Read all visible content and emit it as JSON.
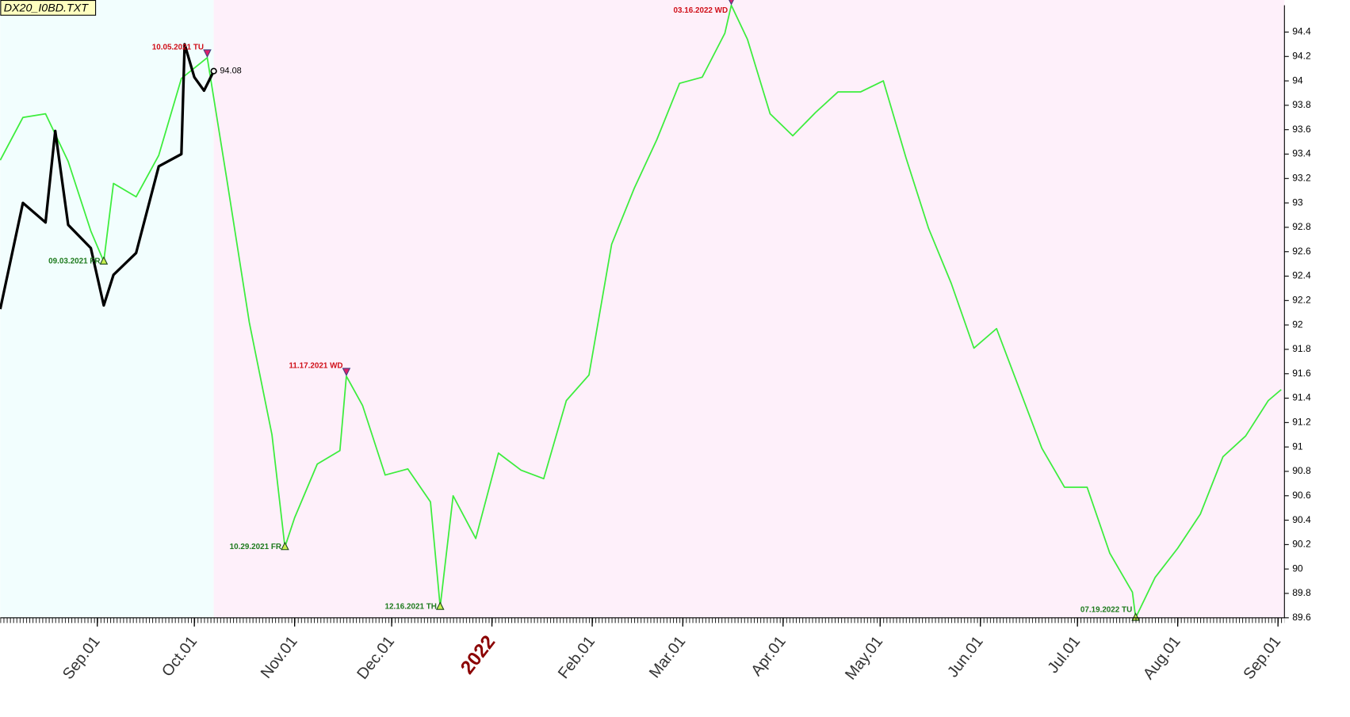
{
  "chart_data": {
    "type": "line",
    "title": "DX20_I0BD.TXT",
    "xlim": [
      "2021-08-02",
      "2022-09-03"
    ],
    "ylim": [
      89.6,
      94.62
    ],
    "yticks": [
      89.6,
      89.8,
      90,
      90.2,
      90.4,
      90.6,
      90.8,
      91,
      91.2,
      91.4,
      91.6,
      91.8,
      92,
      92.2,
      92.4,
      92.6,
      92.8,
      93,
      93.2,
      93.4,
      93.6,
      93.8,
      94,
      94.2,
      94.4
    ],
    "xticks": [
      {
        "value": "2021-09-01",
        "label": "Sep.01"
      },
      {
        "value": "2021-10-01",
        "label": "Oct.01"
      },
      {
        "value": "2021-11-01",
        "label": "Nov.01"
      },
      {
        "value": "2021-12-01",
        "label": "Dec.01"
      },
      {
        "value": "2022-01-01",
        "label": "2022"
      },
      {
        "value": "2022-02-01",
        "label": "Feb.01"
      },
      {
        "value": "2022-03-01",
        "label": "Mar.01"
      },
      {
        "value": "2022-04-01",
        "label": "Apr.01"
      },
      {
        "value": "2022-05-01",
        "label": "May.01"
      },
      {
        "value": "2022-06-01",
        "label": "Jun.01"
      },
      {
        "value": "2022-07-01",
        "label": "Jul.01"
      },
      {
        "value": "2022-08-01",
        "label": "Aug.01"
      },
      {
        "value": "2022-09-01",
        "label": "Sep.01"
      }
    ],
    "regions": [
      {
        "from": "2021-08-02",
        "to": "2021-10-07",
        "color": "#f2fefe"
      },
      {
        "from": "2021-10-07",
        "to": "2022-09-03",
        "color": "#fef0fa"
      }
    ],
    "series": [
      {
        "color": "#3ded3d",
        "width": 1.6,
        "x": [
          "2021-08-02",
          "2021-08-09",
          "2021-08-16",
          "2021-08-23",
          "2021-08-30",
          "2021-09-03",
          "2021-09-06",
          "2021-09-13",
          "2021-09-20",
          "2021-09-27",
          "2021-10-05",
          "2021-10-11",
          "2021-10-18",
          "2021-10-25",
          "2021-10-29",
          "2021-11-01",
          "2021-11-08",
          "2021-11-15",
          "2021-11-17",
          "2021-11-22",
          "2021-11-29",
          "2021-12-06",
          "2021-12-13",
          "2021-12-16",
          "2021-12-20",
          "2021-12-27",
          "2022-01-03",
          "2022-01-10",
          "2022-01-17",
          "2022-01-24",
          "2022-01-31",
          "2022-02-07",
          "2022-02-14",
          "2022-02-21",
          "2022-02-28",
          "2022-03-07",
          "2022-03-14",
          "2022-03-16",
          "2022-03-21",
          "2022-03-28",
          "2022-04-04",
          "2022-04-11",
          "2022-04-18",
          "2022-04-25",
          "2022-05-02",
          "2022-05-09",
          "2022-05-16",
          "2022-05-23",
          "2022-05-30",
          "2022-06-06",
          "2022-06-13",
          "2022-06-20",
          "2022-06-27",
          "2022-07-04",
          "2022-07-11",
          "2022-07-18",
          "2022-07-19",
          "2022-07-25",
          "2022-08-01",
          "2022-08-08",
          "2022-08-15",
          "2022-08-22",
          "2022-08-29",
          "2022-09-02"
        ],
        "values": [
          93.35,
          93.7,
          93.73,
          93.34,
          92.77,
          92.52,
          93.16,
          93.05,
          93.39,
          94.02,
          94.19,
          93.2,
          92.02,
          91.1,
          90.18,
          90.42,
          90.86,
          90.97,
          91.58,
          91.34,
          90.77,
          90.82,
          90.55,
          89.69,
          90.6,
          90.25,
          90.95,
          90.81,
          90.74,
          91.38,
          91.59,
          92.66,
          93.12,
          93.52,
          93.98,
          94.03,
          94.39,
          94.62,
          94.34,
          93.73,
          93.55,
          93.74,
          93.91,
          93.91,
          94.0,
          93.37,
          92.79,
          92.34,
          91.81,
          91.97,
          91.48,
          90.99,
          90.67,
          90.67,
          90.13,
          89.81,
          89.6,
          89.93,
          90.17,
          90.45,
          90.92,
          91.09,
          91.38,
          91.47
        ]
      },
      {
        "color": "#000000",
        "width": 3,
        "x": [
          "2021-08-02",
          "2021-08-09",
          "2021-08-16",
          "2021-08-19",
          "2021-08-23",
          "2021-08-30",
          "2021-09-03",
          "2021-09-06",
          "2021-09-13",
          "2021-09-20",
          "2021-09-27",
          "2021-09-28",
          "2021-10-01",
          "2021-10-04",
          "2021-10-07"
        ],
        "values": [
          92.13,
          93.0,
          92.84,
          93.59,
          92.82,
          92.63,
          92.16,
          92.41,
          92.59,
          93.3,
          93.4,
          94.3,
          94.03,
          93.92,
          94.08
        ]
      }
    ],
    "annotations": [
      {
        "x": "2021-09-03",
        "y": 92.52,
        "label": "09.03.2021 FR",
        "color": "#1e7b1e",
        "marker": "up"
      },
      {
        "x": "2021-10-05",
        "y": 94.19,
        "label": "10.05.2021 TU",
        "color": "#d0101a",
        "marker": "down"
      },
      {
        "x": "2021-10-29",
        "y": 90.18,
        "label": "10.29.2021 FR",
        "color": "#1e7b1e",
        "marker": "up"
      },
      {
        "x": "2021-11-17",
        "y": 91.58,
        "label": "11.17.2021 WD",
        "color": "#d0101a",
        "marker": "down"
      },
      {
        "x": "2021-12-16",
        "y": 89.69,
        "label": "12.16.2021 TH",
        "color": "#1e7b1e",
        "marker": "up"
      },
      {
        "x": "2022-03-16",
        "y": 94.62,
        "label": "03.16.2022 WD",
        "color": "#d0101a",
        "marker": "down"
      },
      {
        "x": "2022-07-19",
        "y": 89.6,
        "label": "07.19.2022 TU",
        "color": "#1e7b1e",
        "marker": "up"
      }
    ]
  }
}
